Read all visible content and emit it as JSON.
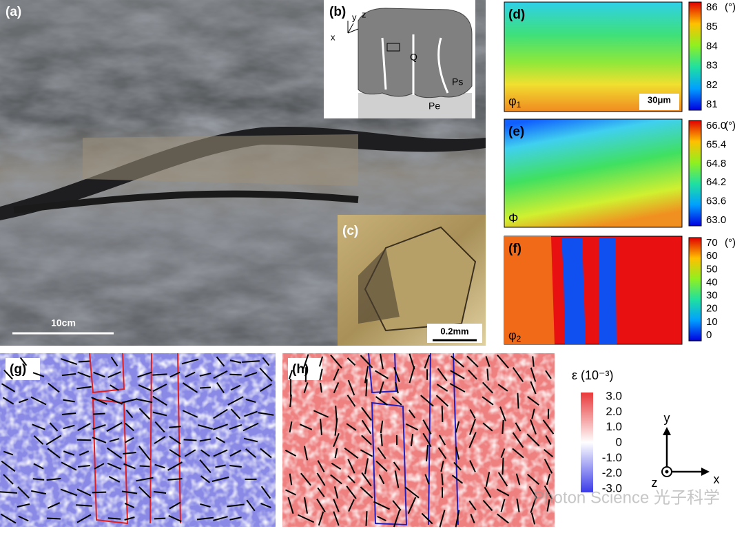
{
  "panel_a": {
    "label": "(a)",
    "scale_bar": "10cm"
  },
  "panel_b": {
    "label": "(b)",
    "axes": [
      "x",
      "y",
      "z"
    ],
    "labels": [
      "Q",
      "Ps",
      "Pe"
    ]
  },
  "panel_c": {
    "label": "(c)",
    "scale_bar": "0.2mm"
  },
  "panel_d": {
    "label": "(d)",
    "symbol": "φ",
    "subscript": "1",
    "scale_bar": "30μm",
    "colorbar": {
      "unit": "(°)",
      "ticks": [
        "86",
        "85",
        "84",
        "83",
        "82",
        "81"
      ]
    }
  },
  "panel_e": {
    "label": "(e)",
    "symbol": "Φ",
    "colorbar": {
      "unit": "(°)",
      "ticks": [
        "66.0",
        "65.4",
        "64.8",
        "64.2",
        "63.6",
        "63.0"
      ]
    }
  },
  "panel_f": {
    "label": "(f)",
    "symbol": "φ",
    "subscript": "2",
    "colorbar": {
      "unit": "(°)",
      "ticks": [
        "70",
        "60",
        "50",
        "40",
        "30",
        "20",
        "10",
        "0"
      ]
    }
  },
  "panel_g": {
    "label": "(g)"
  },
  "panel_h": {
    "label": "(h)"
  },
  "strain_colorbar": {
    "title": "ε (10⁻³)",
    "ticks": [
      "3.0",
      "2.0",
      "1.0",
      "0",
      "-1.0",
      "-2.0",
      "-3.0"
    ]
  },
  "coordinate_axes": [
    "y",
    "x",
    "z"
  ],
  "watermark": "Photon Science 光子科学"
}
